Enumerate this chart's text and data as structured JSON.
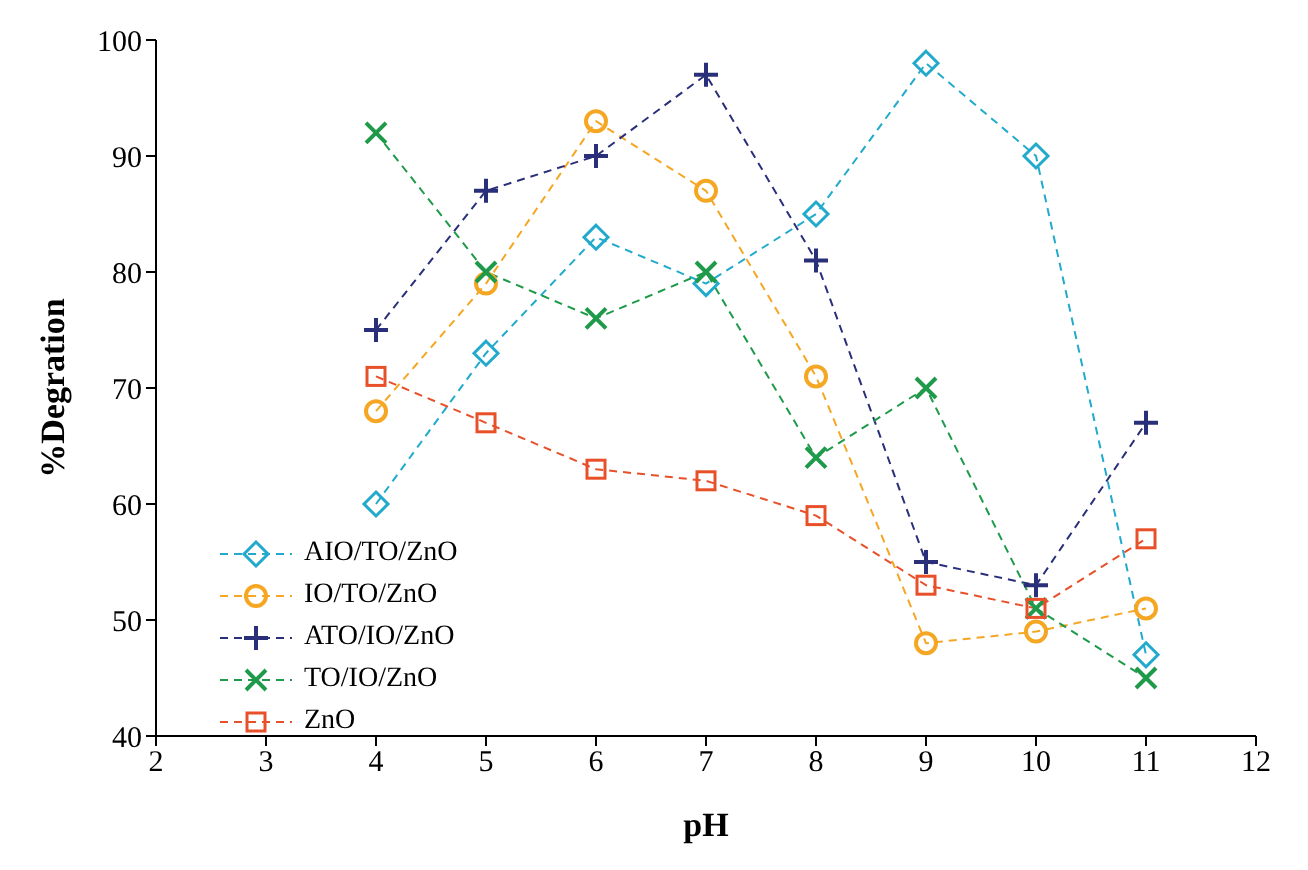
{
  "chart_data": {
    "type": "line",
    "xlabel": "pH",
    "ylabel": "%Degration",
    "xlim": [
      2,
      12
    ],
    "xticks": [
      2,
      3,
      4,
      5,
      6,
      7,
      8,
      9,
      10,
      11,
      12
    ],
    "ylim": [
      40,
      100
    ],
    "yticks": [
      40,
      50,
      60,
      70,
      80,
      90,
      100
    ],
    "x": [
      4,
      5,
      6,
      7,
      8,
      9,
      10,
      11
    ],
    "line_style": "dashed",
    "legend": "bottom left",
    "grid": false,
    "series": [
      {
        "name": "AIO/TO/ZnO",
        "color": "#22aacc",
        "marker": "diamond",
        "values": [
          60,
          73,
          83,
          79,
          85,
          98,
          90,
          47
        ]
      },
      {
        "name": "IO/TO/ZnO",
        "color": "#f5a623",
        "marker": "circle",
        "values": [
          68,
          79,
          93,
          87,
          71,
          48,
          49,
          51
        ]
      },
      {
        "name": "ATO/IO/ZnO",
        "color": "#2a2f7a",
        "marker": "cross",
        "values": [
          75,
          87,
          90,
          97,
          81,
          55,
          53,
          67
        ]
      },
      {
        "name": "TO/IO/ZnO",
        "color": "#1e9a4a",
        "marker": "x",
        "values": [
          92,
          80,
          76,
          80,
          64,
          70,
          51,
          45
        ]
      },
      {
        "name": "ZnO",
        "color": "#e8502a",
        "marker": "square",
        "values": [
          71,
          67,
          63,
          62,
          59,
          53,
          51,
          57
        ]
      }
    ]
  }
}
